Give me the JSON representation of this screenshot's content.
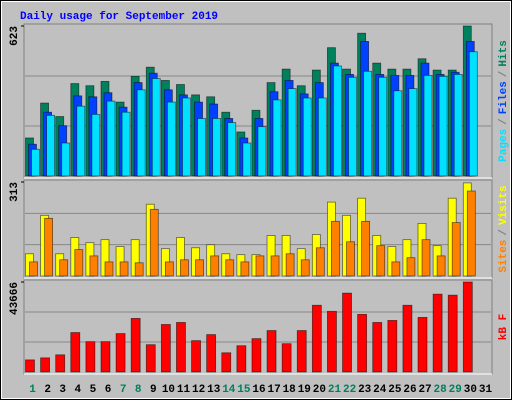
{
  "title": "Daily usage for September 2019",
  "legend_separator": "/",
  "chart_data": [
    {
      "type": "bar",
      "ylim": [
        0,
        623
      ],
      "yticks": [
        623
      ],
      "series": [
        {
          "name": "Hits",
          "color": "#00805c",
          "values": [
            158,
            303,
            247,
            384,
            375,
            393,
            307,
            414,
            452,
            397,
            380,
            337,
            329,
            265,
            183,
            273,
            388,
            444,
            375,
            440,
            533,
            444,
            593,
            469,
            444,
            444,
            487,
            440,
            440,
            623,
            null
          ]
        },
        {
          "name": "Files",
          "color": "#0040ff",
          "values": [
            132,
            265,
            209,
            333,
            329,
            346,
            286,
            388,
            427,
            358,
            337,
            307,
            299,
            239,
            158,
            239,
            350,
            397,
            341,
            388,
            469,
            422,
            559,
            422,
            418,
            418,
            469,
            422,
            431,
            559,
            null
          ]
        },
        {
          "name": "Pages",
          "color": "#00e0ff",
          "values": [
            111,
            252,
            137,
            290,
            256,
            311,
            265,
            358,
            405,
            307,
            324,
            239,
            239,
            222,
            137,
            205,
            316,
            363,
            324,
            324,
            457,
            410,
            435,
            410,
            354,
            363,
            418,
            414,
            422,
            516,
            null
          ]
        }
      ]
    },
    {
      "type": "bar",
      "ylim": [
        0,
        313
      ],
      "yticks": [
        313
      ],
      "series": [
        {
          "name": "Visits",
          "color": "#ffff00",
          "values": [
            74,
            202,
            74,
            128,
            111,
            121,
            98,
            121,
            239,
            91,
            128,
            94,
            104,
            74,
            71,
            71,
            135,
            135,
            91,
            138,
            246,
            202,
            259,
            135,
            98,
            121,
            175,
            101,
            259,
            310,
            null
          ]
        },
        {
          "name": "Sites",
          "color": "#ff8000",
          "values": [
            47,
            192,
            54,
            88,
            67,
            47,
            47,
            44,
            222,
            47,
            54,
            54,
            67,
            54,
            47,
            67,
            67,
            74,
            54,
            94,
            182,
            114,
            182,
            101,
            47,
            61,
            121,
            67,
            178,
            283,
            null
          ]
        }
      ]
    },
    {
      "type": "bar",
      "ylim": [
        0,
        43666
      ],
      "yticks": [
        43666
      ],
      "categories": [
        "1",
        "2",
        "3",
        "4",
        "5",
        "6",
        "7",
        "8",
        "9",
        "10",
        "11",
        "12",
        "13",
        "14",
        "15",
        "16",
        "17",
        "18",
        "19",
        "20",
        "21",
        "22",
        "23",
        "24",
        "25",
        "26",
        "27",
        "28",
        "29",
        "30",
        "31"
      ],
      "category_colors": [
        "#00805c",
        "#000000",
        "#000000",
        "#000000",
        "#000000",
        "#000000",
        "#00805c",
        "#00805c",
        "#000000",
        "#000000",
        "#000000",
        "#000000",
        "#000000",
        "#00805c",
        "#00805c",
        "#000000",
        "#000000",
        "#000000",
        "#000000",
        "#000000",
        "#00805c",
        "#00805c",
        "#000000",
        "#000000",
        "#000000",
        "#000000",
        "#000000",
        "#00805c",
        "#00805c",
        "#000000",
        "#000000"
      ],
      "series": [
        {
          "name": "kB F",
          "color": "#ff0000",
          "values": [
            5888,
            6869,
            8341,
            19134,
            14719,
            14719,
            18644,
            26003,
            13247,
            23060,
            24041,
            15209,
            18153,
            9322,
            12756,
            16191,
            20116,
            13737,
            20116,
            32382,
            29438,
            38269,
            27966,
            24041,
            25022,
            32382,
            26494,
            37778,
            37287,
            43666,
            null
          ]
        }
      ]
    }
  ]
}
